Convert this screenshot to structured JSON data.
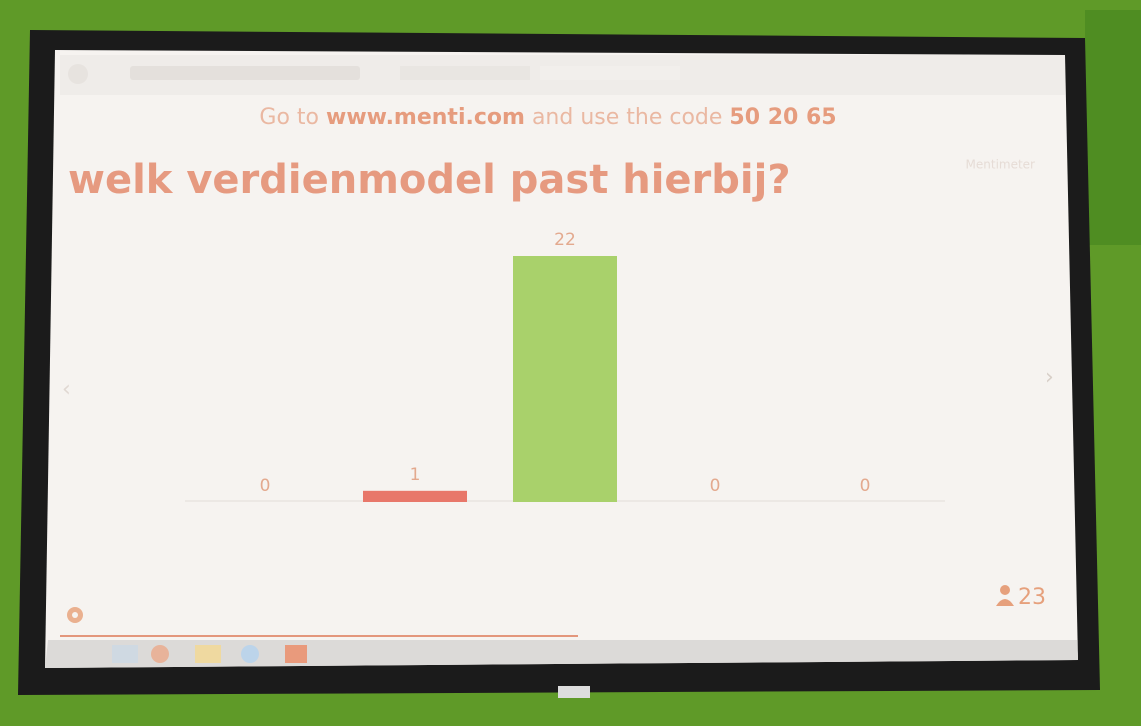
{
  "header": {
    "parts": [
      "Go to",
      "www.menti.com",
      "and use the code",
      "50 20 65"
    ]
  },
  "brand": "Mentimeter",
  "participants": "23",
  "chart_data": {
    "type": "bar",
    "title": "welk verdienmodel past hierbij?",
    "categories": [
      null,
      null,
      null,
      null,
      null
    ],
    "values": [
      0,
      1,
      22,
      0,
      0
    ],
    "colors": [
      "#7fa3d6",
      "#e8776a",
      "#a9d16b",
      "#7fa3d6",
      "#7fa3d6"
    ]
  }
}
